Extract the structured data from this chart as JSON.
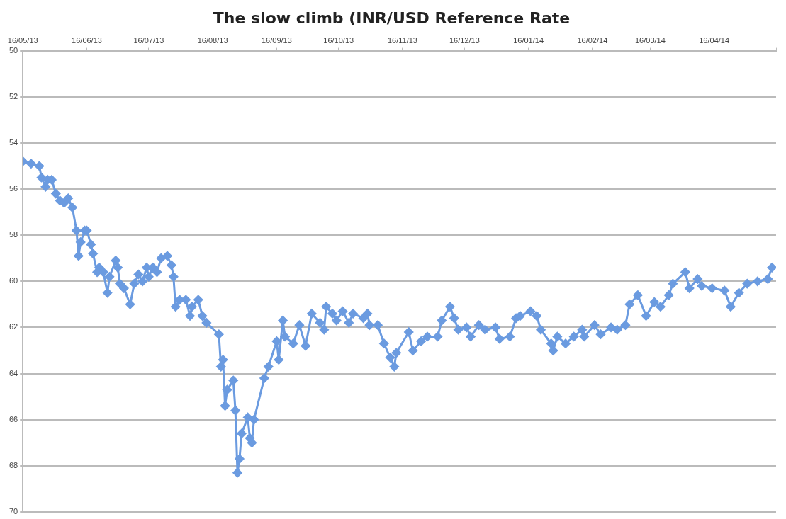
{
  "chart_data": {
    "type": "line",
    "title": "The slow climb (INR/USD Reference Rate",
    "x": [
      "2013-05-16",
      "2013-05-20",
      "2013-05-24",
      "2013-05-25",
      "2013-05-27",
      "2013-05-28",
      "2013-05-30",
      "2013-06-01",
      "2013-06-03",
      "2013-06-05",
      "2013-06-07",
      "2013-06-09",
      "2013-06-11",
      "2013-06-12",
      "2013-06-13",
      "2013-06-15",
      "2013-06-16",
      "2013-06-18",
      "2013-06-19",
      "2013-06-21",
      "2013-06-22",
      "2013-06-24",
      "2013-06-26",
      "2013-06-27",
      "2013-06-30",
      "2013-07-01",
      "2013-07-02",
      "2013-07-04",
      "2013-07-07",
      "2013-07-09",
      "2013-07-11",
      "2013-07-13",
      "2013-07-15",
      "2013-07-16",
      "2013-07-18",
      "2013-07-20",
      "2013-07-22",
      "2013-07-25",
      "2013-07-27",
      "2013-07-28",
      "2013-07-29",
      "2013-07-31",
      "2013-08-03",
      "2013-08-05",
      "2013-08-06",
      "2013-08-09",
      "2013-08-11",
      "2013-08-13",
      "2013-08-19",
      "2013-08-20",
      "2013-08-21",
      "2013-08-22",
      "2013-08-23",
      "2013-08-26",
      "2013-08-27",
      "2013-08-28",
      "2013-08-29",
      "2013-08-30",
      "2013-09-02",
      "2013-09-03",
      "2013-09-04",
      "2013-09-05",
      "2013-09-10",
      "2013-09-12",
      "2013-09-16",
      "2013-09-17",
      "2013-09-19",
      "2013-09-20",
      "2013-09-24",
      "2013-09-27",
      "2013-09-30",
      "2013-10-03",
      "2013-10-07",
      "2013-10-09",
      "2013-10-10",
      "2013-10-13",
      "2013-10-15",
      "2013-10-18",
      "2013-10-21",
      "2013-10-23",
      "2013-10-28",
      "2013-10-30",
      "2013-10-31",
      "2013-11-04",
      "2013-11-07",
      "2013-11-10",
      "2013-11-12",
      "2013-11-13",
      "2013-11-19",
      "2013-11-21",
      "2013-11-25",
      "2013-11-28",
      "2013-12-03",
      "2013-12-05",
      "2013-12-09",
      "2013-12-11",
      "2013-12-13",
      "2013-12-17",
      "2013-12-19",
      "2013-12-23",
      "2013-12-26",
      "2013-12-31",
      "2014-01-02",
      "2014-01-07",
      "2014-01-10",
      "2014-01-12",
      "2014-01-17",
      "2014-01-20",
      "2014-01-22",
      "2014-01-27",
      "2014-01-28",
      "2014-01-30",
      "2014-02-03",
      "2014-02-07",
      "2014-02-11",
      "2014-02-12",
      "2014-02-17",
      "2014-02-20",
      "2014-02-25",
      "2014-02-28",
      "2014-03-04",
      "2014-03-06",
      "2014-03-10",
      "2014-03-14",
      "2014-03-18",
      "2014-03-21",
      "2014-03-25",
      "2014-03-27",
      "2014-04-02",
      "2014-04-04",
      "2014-04-08",
      "2014-04-10",
      "2014-04-15",
      "2014-04-21",
      "2014-04-24",
      "2014-04-28",
      "2014-05-02",
      "2014-05-07",
      "2014-05-12",
      "2014-05-14"
    ],
    "series": [
      {
        "color": "#6b9be0",
        "values": [
          54.8,
          54.9,
          55.0,
          55.5,
          55.9,
          55.6,
          55.6,
          56.2,
          56.5,
          56.6,
          56.4,
          56.8,
          57.8,
          58.9,
          58.3,
          57.8,
          57.8,
          58.4,
          58.8,
          59.6,
          59.4,
          59.6,
          60.5,
          59.8,
          59.1,
          59.4,
          60.1,
          60.3,
          61.0,
          60.1,
          59.7,
          60.0,
          59.4,
          59.8,
          59.4,
          59.6,
          59.0,
          58.9,
          59.3,
          59.8,
          61.1,
          60.8,
          60.8,
          61.5,
          61.1,
          60.8,
          61.5,
          61.8,
          62.3,
          63.7,
          63.4,
          65.4,
          64.7,
          64.3,
          65.6,
          68.3,
          67.7,
          66.6,
          65.9,
          66.8,
          67.0,
          66.0,
          64.2,
          63.7,
          62.6,
          63.4,
          61.7,
          62.4,
          62.7,
          61.9,
          62.8,
          61.4,
          61.8,
          62.1,
          61.1,
          61.4,
          61.7,
          61.3,
          61.8,
          61.4,
          61.6,
          61.4,
          61.9,
          61.9,
          62.7,
          63.3,
          63.7,
          63.1,
          62.2,
          63.0,
          62.6,
          62.4,
          62.4,
          61.7,
          61.1,
          61.6,
          62.1,
          62.0,
          62.4,
          61.9,
          62.1,
          62.0,
          62.5,
          62.4,
          61.6,
          61.5,
          61.3,
          61.5,
          62.1,
          62.7,
          63.0,
          62.4,
          62.7,
          62.4,
          62.1,
          62.4,
          61.9,
          62.3,
          62.0,
          62.1,
          61.9,
          61.0,
          60.6,
          61.5,
          60.9,
          61.1,
          60.6,
          60.1,
          59.6,
          60.3,
          59.9,
          60.2,
          60.3,
          60.4,
          61.1,
          60.5,
          60.1,
          60.0,
          59.9,
          59.4
        ]
      }
    ],
    "xlim": [
      "2013-05-16",
      "2014-05-16"
    ],
    "xticks": [
      {
        "value": "2013-05-16",
        "label": "16/05/13"
      },
      {
        "value": "2013-06-16",
        "label": "16/06/13"
      },
      {
        "value": "2013-07-16",
        "label": "16/07/13"
      },
      {
        "value": "2013-08-16",
        "label": "16/08/13"
      },
      {
        "value": "2013-09-16",
        "label": "16/09/13"
      },
      {
        "value": "2013-10-16",
        "label": "16/10/13"
      },
      {
        "value": "2013-11-16",
        "label": "16/11/13"
      },
      {
        "value": "2013-12-16",
        "label": "16/12/13"
      },
      {
        "value": "2014-01-16",
        "label": "16/01/14"
      },
      {
        "value": "2014-02-16",
        "label": "16/02/14"
      },
      {
        "value": "2014-03-16",
        "label": "16/03/14"
      },
      {
        "value": "2014-04-16",
        "label": "16/04/14"
      },
      {
        "value": "2014-05-16",
        "label": null
      }
    ],
    "ylim": [
      70,
      50
    ],
    "yticks": [
      50,
      52,
      54,
      56,
      58,
      60,
      62,
      64,
      66,
      68,
      70
    ],
    "grid": "y",
    "legend": false,
    "marker": "diamond",
    "line_style": "solid"
  }
}
